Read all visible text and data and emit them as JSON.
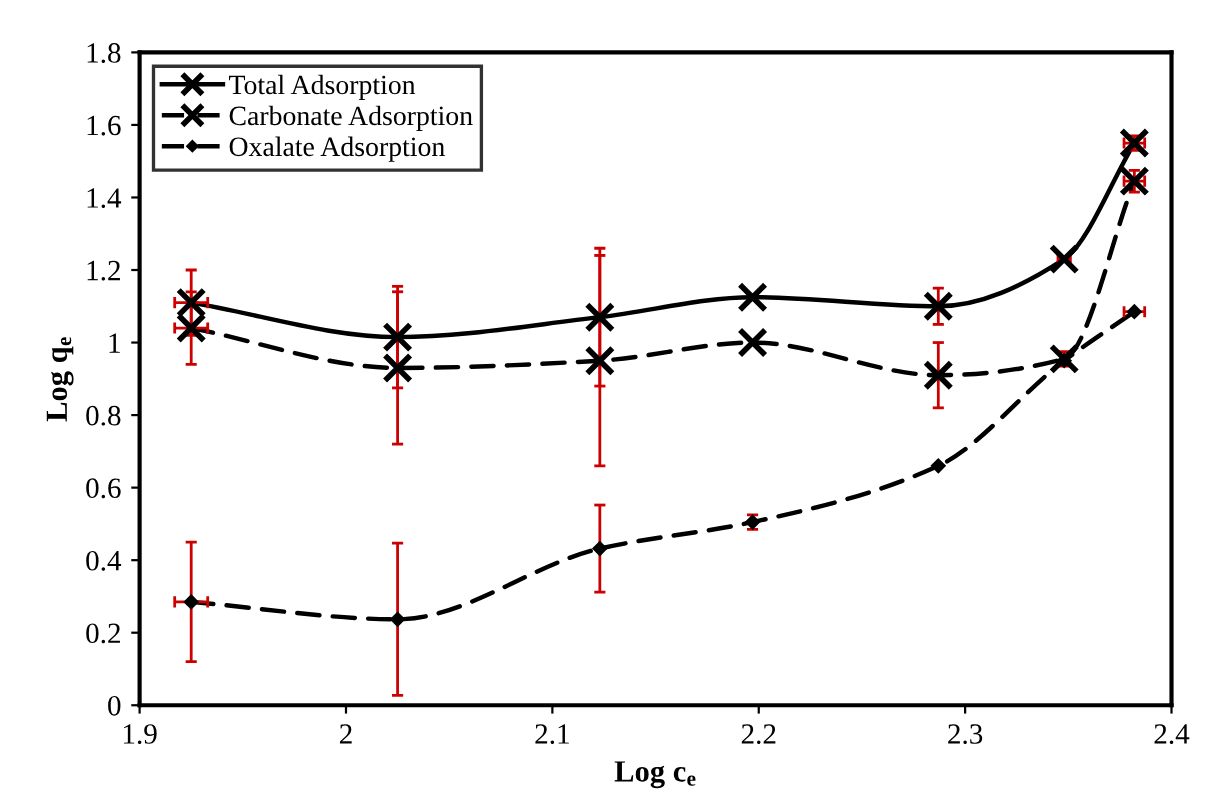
{
  "chart_data": {
    "type": "line",
    "xlabel": "Log c$_{e}$",
    "ylabel": "Log q$_{e}$",
    "xlim": [
      1.9,
      2.4
    ],
    "xticks": [
      1.9,
      2,
      2.1,
      2.2,
      2.3,
      2.4
    ],
    "ylim": [
      0,
      1.8
    ],
    "yticks": [
      0,
      0.2,
      0.4,
      0.6,
      0.8,
      1,
      1.2,
      1.4,
      1.6,
      1.8
    ],
    "grid": false,
    "legend": "top left",
    "x": [
      1.925,
      2.025,
      2.123,
      2.197,
      2.287,
      2.348,
      2.382
    ],
    "series": [
      {
        "name": "Total Adsorption",
        "color": "#000000",
        "marker": "cross",
        "line_style": "solid",
        "values": [
          1.11,
          1.015,
          1.07,
          1.125,
          1.1,
          1.23,
          1.55
        ],
        "errors": [
          0.09,
          0.14,
          0.19,
          null,
          0.05,
          null,
          0.02
        ],
        "xerrors": [
          0.008,
          null,
          null,
          null,
          null,
          0.003,
          0.005
        ]
      },
      {
        "name": "Carbonate Adsorption",
        "color": "#000000",
        "marker": "cross",
        "line_style": "dashed",
        "values": [
          1.04,
          0.93,
          0.95,
          1.0,
          0.91,
          0.955,
          1.445
        ],
        "errors": [
          0.1,
          0.21,
          0.29,
          null,
          0.09,
          0.02,
          0.03
        ],
        "xerrors": [
          0.008,
          null,
          null,
          null,
          null,
          null,
          0.005
        ]
      },
      {
        "name": "Oxalate Adsorption",
        "color": "#000000",
        "marker": "diamond",
        "line_style": "dashed",
        "values": [
          0.285,
          0.237,
          0.432,
          0.505,
          0.66,
          0.95,
          1.085
        ],
        "errors": [
          0.165,
          0.21,
          0.12,
          0.02,
          null,
          null,
          null
        ],
        "xerrors": [
          0.008,
          null,
          null,
          null,
          null,
          null,
          0.005
        ]
      }
    ]
  }
}
